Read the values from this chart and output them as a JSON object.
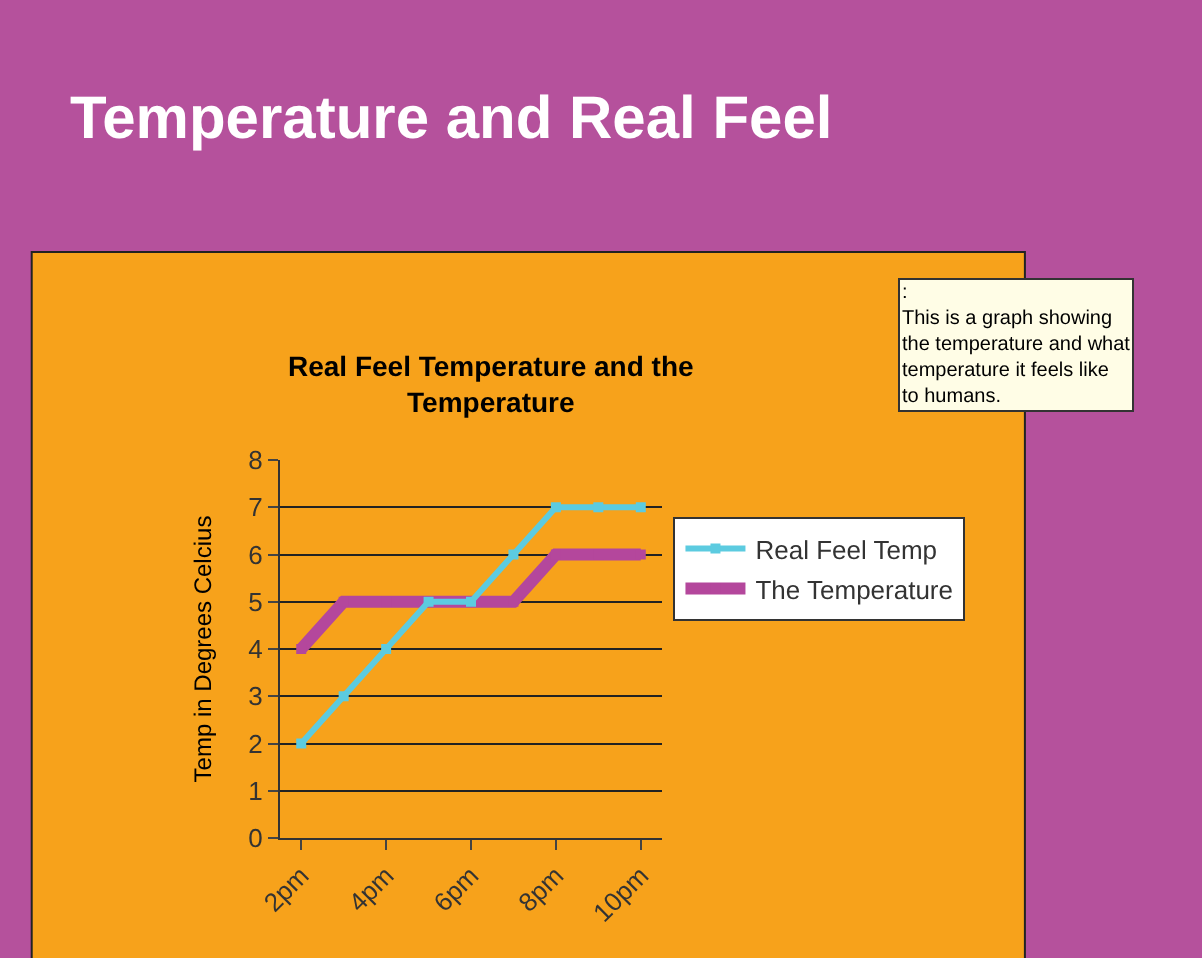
{
  "chart_data": {
    "type": "line",
    "title": "Temperature and Real Feel",
    "subtitle": "Real Feel Temperature and the Temperature",
    "ylabel": "Temp in Degrees Celcius",
    "categories": [
      "2pm",
      null,
      "4pm",
      null,
      "6pm",
      null,
      "8pm",
      null,
      "10pm"
    ],
    "series": [
      {
        "name": "Real Feel Temp",
        "color": "#5ccbe0",
        "values": [
          2,
          3,
          4,
          5,
          5,
          6,
          7,
          7,
          7
        ]
      },
      {
        "name": "The Temperature",
        "color": "#b4479c",
        "values": [
          4,
          5,
          5,
          5,
          5,
          5,
          6,
          6,
          6
        ]
      }
    ],
    "ylim": [
      0,
      8
    ],
    "yticks": [
      0,
      1,
      2,
      3,
      4,
      5,
      6,
      7,
      8
    ],
    "grid": "y",
    "legend": "right",
    "marker": "square",
    "line_style": "solid",
    "annotations": [
      ":\nThis is a graph showing the temperature and what temperature it feels like to humans."
    ]
  }
}
